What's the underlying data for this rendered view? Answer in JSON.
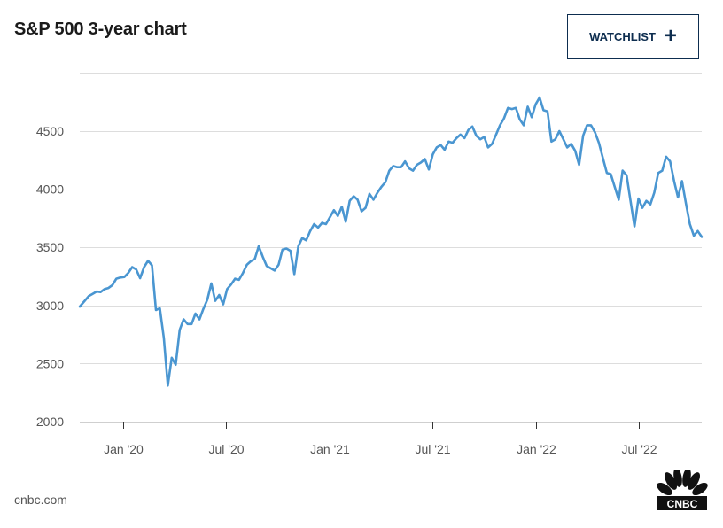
{
  "header": {
    "title": "S&P 500 3-year chart",
    "watchlist_label": "WATCHLIST"
  },
  "footer": {
    "source": "cnbc.com",
    "logo_text": "CNBC"
  },
  "colors": {
    "line": "#4a96d1",
    "grid": "#dddddd",
    "button_border": "#0d2d4f"
  },
  "chart_data": {
    "type": "line",
    "title": "S&P 500 3-year chart",
    "xlabel": "",
    "ylabel": "",
    "ylim": [
      2000,
      4800
    ],
    "yticks": [
      2000,
      2500,
      3000,
      3500,
      4000,
      4500
    ],
    "xticks": [
      {
        "x": 24,
        "label": "Jan '20"
      },
      {
        "x": 30,
        "label": "Jul '20"
      },
      {
        "x": 36,
        "label": "Jan '21"
      },
      {
        "x": 42,
        "label": "Jul '21"
      },
      {
        "x": 48,
        "label": "Jan '22"
      },
      {
        "x": 54,
        "label": "Jul '22"
      }
    ],
    "x_unit": "months since Jan 2018 (weekly points)",
    "grid": true,
    "series": [
      {
        "name": "S&P 500",
        "points": [
          [
            21.49,
            2990
          ],
          [
            21.78,
            3040
          ],
          [
            22.01,
            3080
          ],
          [
            22.24,
            3100
          ],
          [
            22.47,
            3120
          ],
          [
            22.7,
            3115
          ],
          [
            22.93,
            3140
          ],
          [
            23.16,
            3150
          ],
          [
            23.39,
            3175
          ],
          [
            23.62,
            3230
          ],
          [
            23.85,
            3240
          ],
          [
            24.08,
            3245
          ],
          [
            24.31,
            3280
          ],
          [
            24.54,
            3330
          ],
          [
            24.77,
            3310
          ],
          [
            25.0,
            3235
          ],
          [
            25.23,
            3330
          ],
          [
            25.46,
            3385
          ],
          [
            25.69,
            3345
          ],
          [
            25.92,
            2960
          ],
          [
            26.15,
            2975
          ],
          [
            26.38,
            2720
          ],
          [
            26.61,
            2310
          ],
          [
            26.84,
            2550
          ],
          [
            27.07,
            2490
          ],
          [
            27.3,
            2790
          ],
          [
            27.53,
            2880
          ],
          [
            27.76,
            2840
          ],
          [
            27.99,
            2840
          ],
          [
            28.22,
            2930
          ],
          [
            28.45,
            2880
          ],
          [
            28.68,
            2970
          ],
          [
            28.91,
            3050
          ],
          [
            29.14,
            3190
          ],
          [
            29.37,
            3040
          ],
          [
            29.6,
            3090
          ],
          [
            29.83,
            3010
          ],
          [
            30.06,
            3140
          ],
          [
            30.29,
            3180
          ],
          [
            30.52,
            3230
          ],
          [
            30.75,
            3220
          ],
          [
            30.98,
            3280
          ],
          [
            31.21,
            3350
          ],
          [
            31.44,
            3380
          ],
          [
            31.67,
            3400
          ],
          [
            31.9,
            3510
          ],
          [
            32.13,
            3420
          ],
          [
            32.36,
            3340
          ],
          [
            32.59,
            3320
          ],
          [
            32.82,
            3300
          ],
          [
            33.05,
            3350
          ],
          [
            33.28,
            3480
          ],
          [
            33.51,
            3490
          ],
          [
            33.74,
            3470
          ],
          [
            33.97,
            3270
          ],
          [
            34.2,
            3510
          ],
          [
            34.43,
            3580
          ],
          [
            34.66,
            3560
          ],
          [
            34.89,
            3640
          ],
          [
            35.12,
            3700
          ],
          [
            35.35,
            3670
          ],
          [
            35.58,
            3710
          ],
          [
            35.81,
            3700
          ],
          [
            36.04,
            3760
          ],
          [
            36.27,
            3820
          ],
          [
            36.5,
            3770
          ],
          [
            36.73,
            3850
          ],
          [
            36.96,
            3720
          ],
          [
            37.19,
            3900
          ],
          [
            37.42,
            3940
          ],
          [
            37.65,
            3910
          ],
          [
            37.88,
            3810
          ],
          [
            38.11,
            3840
          ],
          [
            38.34,
            3960
          ],
          [
            38.57,
            3910
          ],
          [
            38.8,
            3970
          ],
          [
            39.03,
            4020
          ],
          [
            39.26,
            4060
          ],
          [
            39.49,
            4160
          ],
          [
            39.72,
            4200
          ],
          [
            39.95,
            4190
          ],
          [
            40.18,
            4190
          ],
          [
            40.41,
            4240
          ],
          [
            40.64,
            4180
          ],
          [
            40.87,
            4160
          ],
          [
            41.1,
            4210
          ],
          [
            41.33,
            4230
          ],
          [
            41.56,
            4260
          ],
          [
            41.79,
            4170
          ],
          [
            42.02,
            4300
          ],
          [
            42.25,
            4360
          ],
          [
            42.48,
            4380
          ],
          [
            42.71,
            4340
          ],
          [
            42.94,
            4410
          ],
          [
            43.17,
            4400
          ],
          [
            43.4,
            4440
          ],
          [
            43.63,
            4470
          ],
          [
            43.86,
            4440
          ],
          [
            44.09,
            4510
          ],
          [
            44.32,
            4540
          ],
          [
            44.55,
            4460
          ],
          [
            44.78,
            4430
          ],
          [
            45.01,
            4450
          ],
          [
            45.24,
            4360
          ],
          [
            45.47,
            4390
          ],
          [
            45.7,
            4470
          ],
          [
            45.93,
            4550
          ],
          [
            46.16,
            4610
          ],
          [
            46.39,
            4700
          ],
          [
            46.62,
            4690
          ],
          [
            46.85,
            4700
          ],
          [
            47.08,
            4600
          ],
          [
            47.31,
            4550
          ],
          [
            47.54,
            4710
          ],
          [
            47.77,
            4620
          ],
          [
            48.0,
            4730
          ],
          [
            48.23,
            4790
          ],
          [
            48.46,
            4680
          ],
          [
            48.69,
            4670
          ],
          [
            48.92,
            4410
          ],
          [
            49.15,
            4430
          ],
          [
            49.38,
            4500
          ],
          [
            49.61,
            4430
          ],
          [
            49.84,
            4360
          ],
          [
            50.07,
            4390
          ],
          [
            50.3,
            4330
          ],
          [
            50.53,
            4210
          ],
          [
            50.76,
            4460
          ],
          [
            50.99,
            4550
          ],
          [
            51.22,
            4550
          ],
          [
            51.45,
            4490
          ],
          [
            51.68,
            4400
          ],
          [
            51.91,
            4270
          ],
          [
            52.14,
            4140
          ],
          [
            52.37,
            4130
          ],
          [
            52.6,
            4020
          ],
          [
            52.83,
            3910
          ],
          [
            53.06,
            4160
          ],
          [
            53.29,
            4120
          ],
          [
            53.52,
            3900
          ],
          [
            53.75,
            3680
          ],
          [
            53.98,
            3920
          ],
          [
            54.21,
            3840
          ],
          [
            54.44,
            3900
          ],
          [
            54.67,
            3870
          ],
          [
            54.9,
            3970
          ],
          [
            55.13,
            4140
          ],
          [
            55.36,
            4160
          ],
          [
            55.59,
            4280
          ],
          [
            55.82,
            4240
          ],
          [
            56.05,
            4070
          ],
          [
            56.28,
            3930
          ],
          [
            56.51,
            4070
          ],
          [
            56.74,
            3880
          ],
          [
            56.97,
            3700
          ],
          [
            57.2,
            3600
          ],
          [
            57.43,
            3640
          ],
          [
            57.66,
            3590
          ]
        ]
      }
    ]
  }
}
